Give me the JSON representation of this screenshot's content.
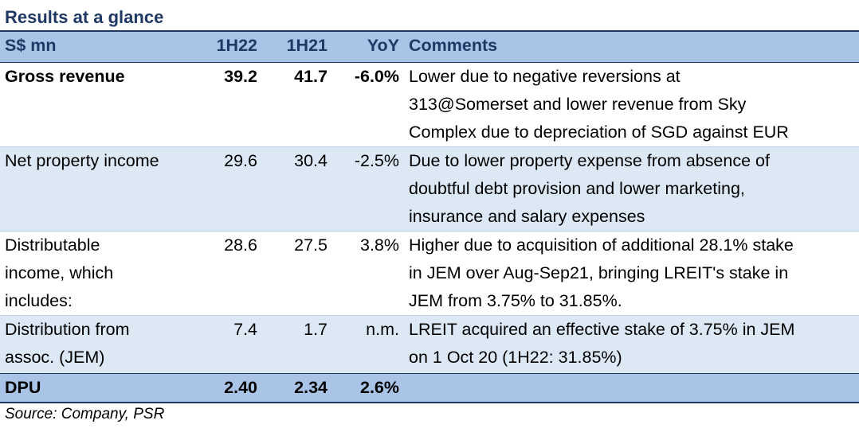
{
  "title": "Results at a glance",
  "header": {
    "label": "S$ mn",
    "col1": "1H22",
    "col2": "1H21",
    "col3": "YoY",
    "col4": "Comments"
  },
  "rows": [
    {
      "label": "Gross revenue",
      "h22": "39.2",
      "h21": "41.7",
      "yoy": "-6.0%",
      "comment_lines": [
        "Lower due to negative reversions at",
        "313@Somerset and lower revenue from Sky",
        "Complex due to depreciation of SGD against EUR"
      ]
    },
    {
      "label": "Net property income",
      "h22": "29.6",
      "h21": "30.4",
      "yoy": "-2.5%",
      "comment_lines": [
        "Due to lower property expense from absence of",
        "doubtful debt provision and lower marketing,",
        "insurance and salary expenses"
      ]
    },
    {
      "label_lines": [
        "Distributable",
        "income, which",
        "includes:"
      ],
      "h22": "28.6",
      "h21": "27.5",
      "yoy": "3.8%",
      "comment_lines": [
        "Higher due to acquisition of additional 28.1% stake",
        "in JEM over Aug-Sep21, bringing LREIT's stake in",
        "JEM from 3.75% to 31.85%."
      ]
    },
    {
      "label_lines": [
        "Distribution from",
        "assoc. (JEM)"
      ],
      "h22": "7.4",
      "h21": "1.7",
      "yoy": "n.m.",
      "comment_lines": [
        "LREIT acquired an effective stake of 3.75% in JEM",
        "on 1 Oct 20 (1H22: 31.85%)"
      ]
    },
    {
      "label": "DPU",
      "h22": "2.40",
      "h21": "2.34",
      "yoy": "2.6%",
      "comment": ""
    }
  ],
  "source": "Source: Company, PSR",
  "colors": {
    "title": "#1f3864",
    "header_bg": "#a9c4e6",
    "row_shade": "#dde8f5"
  }
}
